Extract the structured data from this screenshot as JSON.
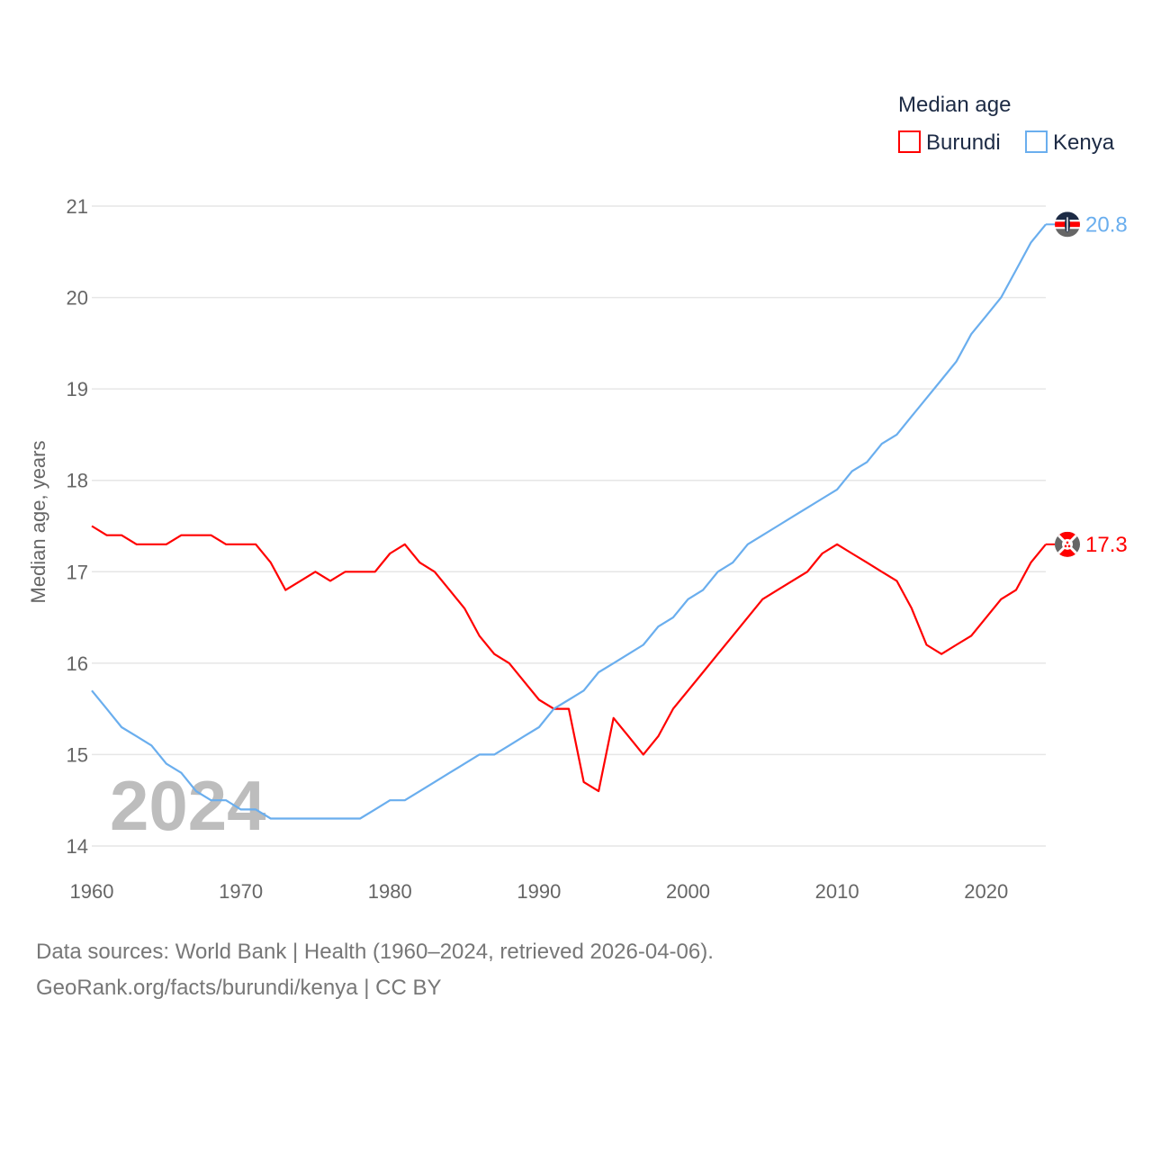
{
  "chart_data": {
    "type": "line",
    "title": "Median age",
    "xlabel": "",
    "ylabel": "Median age, years",
    "xlim": [
      1960,
      2024
    ],
    "ylim": [
      14,
      21
    ],
    "xticks": [
      1960,
      1970,
      1980,
      1990,
      2000,
      2010,
      2020
    ],
    "yticks": [
      14,
      15,
      16,
      17,
      18,
      19,
      20,
      21
    ],
    "grid": true,
    "legend_position": "top-right",
    "year_label": "2024",
    "x": [
      1960,
      1961,
      1962,
      1963,
      1964,
      1965,
      1966,
      1967,
      1968,
      1969,
      1970,
      1971,
      1972,
      1973,
      1974,
      1975,
      1976,
      1977,
      1978,
      1979,
      1980,
      1981,
      1982,
      1983,
      1984,
      1985,
      1986,
      1987,
      1988,
      1989,
      1990,
      1991,
      1992,
      1993,
      1994,
      1995,
      1996,
      1997,
      1998,
      1999,
      2000,
      2001,
      2002,
      2003,
      2004,
      2005,
      2006,
      2007,
      2008,
      2009,
      2010,
      2011,
      2012,
      2013,
      2014,
      2015,
      2016,
      2017,
      2018,
      2019,
      2020,
      2021,
      2022,
      2023,
      2024
    ],
    "series": [
      {
        "name": "Burundi",
        "color": "#ff0000",
        "end_label": "17.3",
        "values": [
          17.5,
          17.4,
          17.4,
          17.3,
          17.3,
          17.3,
          17.4,
          17.4,
          17.4,
          17.3,
          17.3,
          17.3,
          17.1,
          16.8,
          16.9,
          17.0,
          16.9,
          17.0,
          17.0,
          17.0,
          17.2,
          17.3,
          17.1,
          17.0,
          16.8,
          16.6,
          16.3,
          16.1,
          16.0,
          15.8,
          15.6,
          15.5,
          15.5,
          14.7,
          14.6,
          15.4,
          15.2,
          15.0,
          15.2,
          15.5,
          15.7,
          15.9,
          16.1,
          16.3,
          16.5,
          16.7,
          16.8,
          16.9,
          17.0,
          17.2,
          17.3,
          17.2,
          17.1,
          17.0,
          16.9,
          16.6,
          16.2,
          16.1,
          16.2,
          16.3,
          16.5,
          16.7,
          16.8,
          17.1,
          17.3
        ]
      },
      {
        "name": "Kenya",
        "color": "#6aaeee",
        "end_label": "20.8",
        "values": [
          15.7,
          15.5,
          15.3,
          15.2,
          15.1,
          14.9,
          14.8,
          14.6,
          14.5,
          14.5,
          14.4,
          14.4,
          14.3,
          14.3,
          14.3,
          14.3,
          14.3,
          14.3,
          14.3,
          14.4,
          14.5,
          14.5,
          14.6,
          14.7,
          14.8,
          14.9,
          15.0,
          15.0,
          15.1,
          15.2,
          15.3,
          15.5,
          15.6,
          15.7,
          15.9,
          16.0,
          16.1,
          16.2,
          16.4,
          16.5,
          16.7,
          16.8,
          17.0,
          17.1,
          17.3,
          17.4,
          17.5,
          17.6,
          17.7,
          17.8,
          17.9,
          18.1,
          18.2,
          18.4,
          18.5,
          18.7,
          18.9,
          19.1,
          19.3,
          19.6,
          19.8,
          20.0,
          20.3,
          20.6,
          20.8
        ]
      }
    ]
  },
  "footer": {
    "line1": "Data sources: World Bank | Health (1960–2024, retrieved 2026-04-06).",
    "line2": "GeoRank.org/facts/burundi/kenya | CC BY"
  }
}
